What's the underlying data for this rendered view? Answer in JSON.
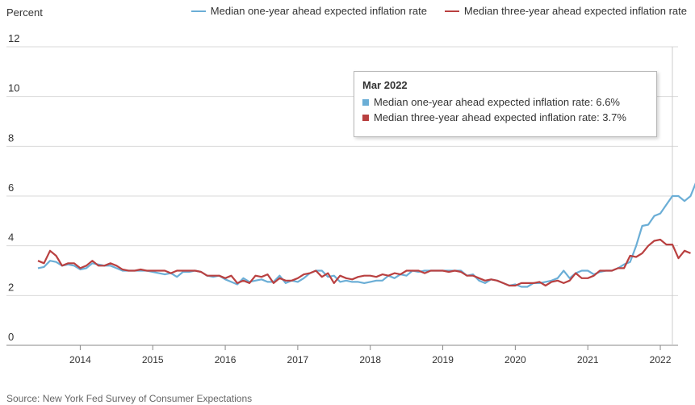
{
  "chart_data": {
    "type": "line",
    "ylabel": "Percent",
    "ylim": [
      0,
      12
    ],
    "yticks": [
      "0",
      "2",
      "4",
      "6",
      "8",
      "10",
      "12"
    ],
    "xticks": [
      "2014",
      "2015",
      "2016",
      "2017",
      "2018",
      "2019",
      "2020",
      "2021",
      "2022"
    ],
    "x_start": "2013-06",
    "x_end": "2022-03",
    "legend_position": "top-right",
    "grid": "horizontal",
    "series": [
      {
        "name": "Median one-year ahead expected inflation rate",
        "color": "#6baed6",
        "values": [
          3.1,
          3.15,
          3.4,
          3.35,
          3.2,
          3.25,
          3.2,
          3.05,
          3.1,
          3.3,
          3.25,
          3.2,
          3.2,
          3.1,
          3.0,
          3.0,
          3.0,
          3.0,
          3.0,
          2.95,
          2.9,
          2.85,
          2.9,
          2.75,
          2.95,
          2.95,
          3.0,
          2.95,
          2.8,
          2.75,
          2.8,
          2.65,
          2.55,
          2.45,
          2.7,
          2.55,
          2.6,
          2.65,
          2.55,
          2.55,
          2.8,
          2.5,
          2.6,
          2.55,
          2.7,
          2.9,
          3.0,
          3.0,
          2.75,
          2.8,
          2.55,
          2.6,
          2.55,
          2.55,
          2.5,
          2.55,
          2.6,
          2.6,
          2.8,
          2.7,
          2.85,
          2.8,
          3.0,
          2.95,
          3.0,
          3.0,
          3.0,
          3.0,
          3.0,
          3.0,
          3.0,
          2.8,
          2.85,
          2.6,
          2.5,
          2.65,
          2.6,
          2.5,
          2.4,
          2.45,
          2.35,
          2.35,
          2.5,
          2.5,
          2.55,
          2.6,
          2.7,
          3.0,
          2.7,
          2.9,
          3.0,
          3.0,
          2.85,
          2.95,
          3.0,
          3.0,
          3.1,
          3.25,
          3.35,
          4.0,
          4.8,
          4.85,
          5.2,
          5.3,
          5.65,
          6.0,
          6.0,
          5.8,
          6.0,
          6.6
        ]
      },
      {
        "name": "Median three-year ahead expected inflation rate",
        "color": "#b94040",
        "values": [
          3.4,
          3.3,
          3.8,
          3.6,
          3.2,
          3.3,
          3.3,
          3.1,
          3.2,
          3.4,
          3.2,
          3.2,
          3.3,
          3.2,
          3.05,
          3.0,
          3.0,
          3.05,
          3.0,
          3.0,
          3.0,
          3.0,
          2.9,
          3.0,
          3.0,
          3.0,
          3.0,
          2.95,
          2.8,
          2.8,
          2.8,
          2.7,
          2.8,
          2.5,
          2.6,
          2.5,
          2.8,
          2.75,
          2.85,
          2.5,
          2.7,
          2.6,
          2.6,
          2.7,
          2.85,
          2.9,
          3.0,
          2.75,
          2.9,
          2.5,
          2.8,
          2.7,
          2.65,
          2.75,
          2.8,
          2.8,
          2.75,
          2.85,
          2.8,
          2.9,
          2.85,
          3.0,
          3.0,
          3.0,
          2.9,
          3.0,
          3.0,
          3.0,
          2.95,
          3.0,
          2.95,
          2.8,
          2.8,
          2.7,
          2.6,
          2.65,
          2.6,
          2.5,
          2.4,
          2.4,
          2.5,
          2.5,
          2.5,
          2.55,
          2.4,
          2.55,
          2.6,
          2.5,
          2.6,
          2.9,
          2.7,
          2.7,
          2.8,
          3.0,
          3.0,
          3.0,
          3.1,
          3.1,
          3.6,
          3.55,
          3.7,
          4.0,
          4.2,
          4.25,
          4.05,
          4.05,
          3.5,
          3.8,
          3.7
        ]
      }
    ],
    "tooltip": {
      "title": "Mar 2022",
      "rows": [
        "Median one-year ahead expected inflation rate: 6.6%",
        "Median three-year ahead expected inflation rate: 3.7%"
      ]
    }
  },
  "source": "Source: New York Fed Survey of Consumer Expectations"
}
